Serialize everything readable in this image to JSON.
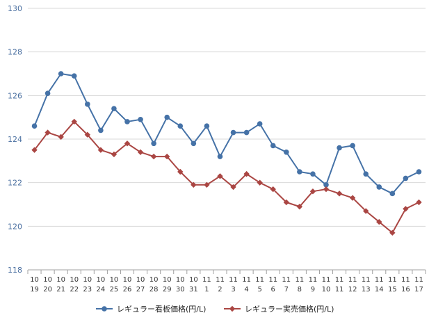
{
  "chart_data": {
    "type": "line",
    "title": "",
    "xlabel": "",
    "ylabel": "",
    "ylim": [
      118,
      130
    ],
    "yticks": [
      118,
      120,
      122,
      124,
      126,
      128,
      130
    ],
    "grid": "horizontal",
    "legend_position": "bottom",
    "categories": [
      [
        "10",
        "19"
      ],
      [
        "10",
        "20"
      ],
      [
        "10",
        "21"
      ],
      [
        "10",
        "22"
      ],
      [
        "10",
        "23"
      ],
      [
        "10",
        "24"
      ],
      [
        "10",
        "25"
      ],
      [
        "10",
        "26"
      ],
      [
        "10",
        "27"
      ],
      [
        "10",
        "28"
      ],
      [
        "10",
        "29"
      ],
      [
        "10",
        "30"
      ],
      [
        "10",
        "31"
      ],
      [
        "11",
        "1"
      ],
      [
        "11",
        "2"
      ],
      [
        "11",
        "3"
      ],
      [
        "11",
        "4"
      ],
      [
        "11",
        "5"
      ],
      [
        "11",
        "6"
      ],
      [
        "11",
        "7"
      ],
      [
        "11",
        "8"
      ],
      [
        "11",
        "9"
      ],
      [
        "11",
        "10"
      ],
      [
        "11",
        "11"
      ],
      [
        "11",
        "12"
      ],
      [
        "11",
        "13"
      ],
      [
        "11",
        "14"
      ],
      [
        "11",
        "15"
      ],
      [
        "11",
        "16"
      ],
      [
        "11",
        "17"
      ]
    ],
    "series": [
      {
        "name": "レギュラー看板価格(円/L)",
        "color": "#4572a7",
        "marker": "circle",
        "values": [
          124.6,
          126.1,
          127.0,
          126.9,
          125.6,
          124.4,
          125.4,
          124.8,
          124.9,
          123.8,
          125.0,
          124.6,
          123.8,
          124.6,
          123.2,
          124.3,
          124.3,
          124.7,
          123.7,
          123.4,
          122.5,
          122.4,
          121.9,
          123.6,
          123.7,
          122.4,
          121.8,
          121.5,
          122.2,
          122.5
        ]
      },
      {
        "name": "レギュラー実売価格(円/L)",
        "color": "#aa4643",
        "marker": "diamond",
        "values": [
          123.5,
          124.3,
          124.1,
          124.8,
          124.2,
          123.5,
          123.3,
          123.8,
          123.4,
          123.2,
          123.2,
          122.5,
          121.9,
          121.9,
          122.3,
          121.8,
          122.4,
          122.0,
          121.7,
          121.1,
          120.9,
          121.6,
          121.7,
          121.5,
          121.3,
          120.7,
          120.2,
          119.7,
          120.8,
          121.1
        ]
      }
    ]
  }
}
